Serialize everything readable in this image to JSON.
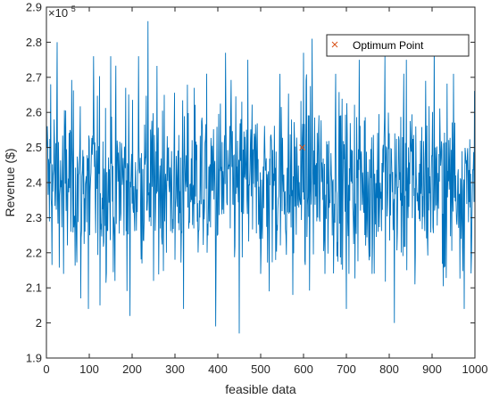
{
  "chart_data": {
    "type": "line",
    "xlabel": "feasible data",
    "ylabel": "Revenue ($)",
    "xlim": [
      0,
      1000
    ],
    "ylim": [
      190000,
      290000
    ],
    "x_ticks": [
      0,
      100,
      200,
      300,
      400,
      500,
      600,
      700,
      800,
      900,
      1000
    ],
    "x_tick_labels": [
      "0",
      "100",
      "200",
      "300",
      "400",
      "500",
      "600",
      "700",
      "800",
      "900",
      "1000"
    ],
    "y_ticks": [
      190000,
      200000,
      210000,
      220000,
      230000,
      240000,
      250000,
      260000,
      270000,
      280000,
      290000
    ],
    "y_tick_labels": [
      "1.9",
      "2",
      "2.1",
      "2.2",
      "2.3",
      "2.4",
      "2.5",
      "2.6",
      "2.7",
      "2.8",
      "2.9"
    ],
    "y_exponent_base": "×10",
    "y_exponent_power": "5",
    "grid": false,
    "legend_position": "top-right",
    "series": [
      {
        "x_start": 1,
        "x_step": 1,
        "color": "#0072BD",
        "anchors": [
          [
            1,
            250000
          ],
          [
            10,
            268000
          ],
          [
            25,
            280000
          ],
          [
            40,
            214000
          ],
          [
            55,
            255000
          ],
          [
            80,
            207000
          ],
          [
            98,
            204000
          ],
          [
            110,
            276000
          ],
          [
            125,
            205000
          ],
          [
            150,
            276000
          ],
          [
            160,
            212000
          ],
          [
            185,
            267000
          ],
          [
            195,
            202000
          ],
          [
            215,
            276000
          ],
          [
            237,
            286000
          ],
          [
            250,
            212000
          ],
          [
            275,
            265000
          ],
          [
            300,
            218000
          ],
          [
            320,
            204000
          ],
          [
            345,
            267000
          ],
          [
            375,
            220000
          ],
          [
            395,
            199000
          ],
          [
            418,
            277000
          ],
          [
            450,
            197000
          ],
          [
            470,
            275000
          ],
          [
            500,
            214000
          ],
          [
            520,
            209000
          ],
          [
            545,
            271000
          ],
          [
            575,
            208000
          ],
          [
            600,
            277000
          ],
          [
            620,
            281000
          ],
          [
            650,
            214000
          ],
          [
            675,
            271000
          ],
          [
            700,
            204000
          ],
          [
            730,
            275000
          ],
          [
            760,
            214000
          ],
          [
            790,
            276000
          ],
          [
            812,
            200000
          ],
          [
            840,
            275000
          ],
          [
            860,
            211000
          ],
          [
            885,
            269000
          ],
          [
            905,
            281000
          ],
          [
            930,
            216000
          ],
          [
            950,
            271000
          ],
          [
            975,
            204000
          ],
          [
            1000,
            238000
          ]
        ]
      },
      {
        "name": "Optimum Point",
        "type": "scatter",
        "marker": "x",
        "color": "#D95319",
        "points": [
          [
            597,
            250000
          ]
        ]
      }
    ]
  },
  "legend": {
    "items": [
      {
        "label": "Optimum Point",
        "marker": "x",
        "color": "#D95319"
      }
    ]
  }
}
